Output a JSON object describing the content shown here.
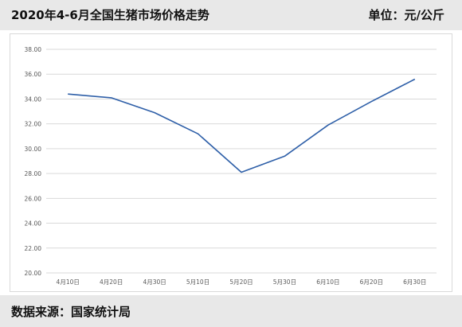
{
  "header": {
    "title": "2020年4-6月全国生猪市场价格走势",
    "unit": "单位：元/公斤"
  },
  "footer": {
    "source": "数据来源：国家统计局"
  },
  "colors": {
    "line": "#2e5fa8",
    "grid": "#d9d9d9",
    "axis_text": "#595959",
    "band": "#e8e8e8"
  },
  "chart_data": {
    "type": "line",
    "categories": [
      "4月10日",
      "4月20日",
      "4月30日",
      "5月10日",
      "5月20日",
      "5月30日",
      "6月10日",
      "6月20日",
      "6月30日"
    ],
    "series": [
      {
        "values": [
          34.4,
          34.1,
          32.9,
          31.2,
          28.1,
          29.4,
          31.9,
          33.8,
          35.6
        ]
      }
    ],
    "yticks": [
      "38.00",
      "36.00",
      "34.00",
      "32.00",
      "30.00",
      "28.00",
      "26.00",
      "24.00",
      "22.00",
      "20.00"
    ],
    "ylim": [
      20,
      38
    ],
    "title": "",
    "xlabel": "",
    "ylabel": "",
    "grid": true,
    "legend": "none"
  }
}
